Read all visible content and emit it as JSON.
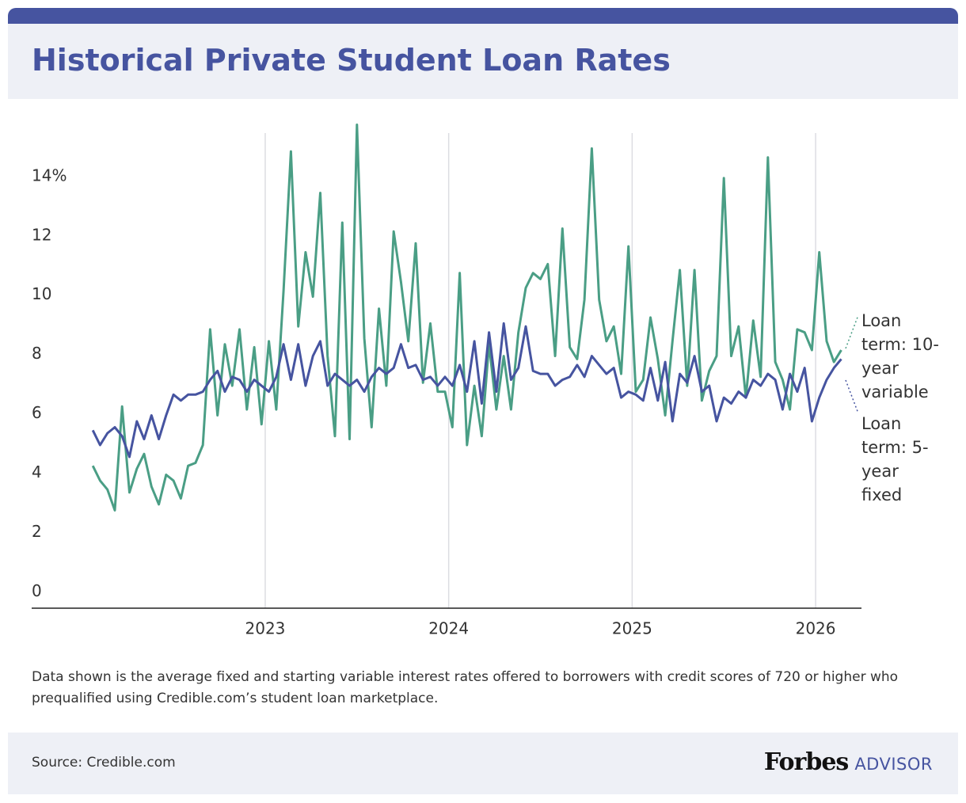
{
  "chart_data": {
    "type": "line",
    "title": "Historical Private Student Loan Rates",
    "x": [
      2022.06,
      2022.1,
      2022.14,
      2022.18,
      2022.22,
      2022.26,
      2022.3,
      2022.34,
      2022.38,
      2022.42,
      2022.46,
      2022.5,
      2022.54,
      2022.58,
      2022.62,
      2022.66,
      2022.7,
      2022.74,
      2022.78,
      2022.82,
      2022.86,
      2022.9,
      2022.94,
      2022.98,
      2023.02,
      2023.06,
      2023.1,
      2023.14,
      2023.18,
      2023.22,
      2023.26,
      2023.3,
      2023.34,
      2023.38,
      2023.42,
      2023.46,
      2023.5,
      2023.54,
      2023.58,
      2023.62,
      2023.66,
      2023.7,
      2023.74,
      2023.78,
      2023.82,
      2023.86,
      2023.9,
      2023.94,
      2023.98,
      2024.02,
      2024.06,
      2024.1,
      2024.14,
      2024.18,
      2024.22,
      2024.26,
      2024.3,
      2024.34,
      2024.38,
      2024.42,
      2024.46,
      2024.5,
      2024.54,
      2024.58,
      2024.62,
      2024.66,
      2024.7,
      2024.74,
      2024.78,
      2024.82,
      2024.86,
      2024.9,
      2024.94,
      2024.98,
      2025.02,
      2025.06,
      2025.1,
      2025.14,
      2025.18,
      2025.22,
      2025.26,
      2025.3,
      2025.34,
      2025.38,
      2025.42,
      2025.46,
      2025.5,
      2025.54,
      2025.58,
      2025.62,
      2025.66,
      2025.7,
      2025.74,
      2025.78,
      2025.82,
      2025.86,
      2025.9,
      2025.94,
      2025.98,
      2026.02,
      2026.06,
      2026.1,
      2026.14
    ],
    "series": [
      {
        "name": "Loan term: 10-year variable",
        "color": "#4a9e85",
        "values": [
          4.3,
          3.8,
          3.5,
          2.8,
          6.3,
          3.4,
          4.2,
          4.7,
          3.6,
          3.0,
          4.0,
          3.8,
          3.2,
          4.3,
          4.4,
          5.0,
          8.9,
          6.0,
          8.4,
          7.0,
          8.9,
          6.2,
          8.3,
          5.7,
          8.5,
          6.2,
          10.2,
          14.9,
          9.0,
          11.5,
          10.0,
          13.5,
          8.0,
          5.3,
          12.5,
          5.2,
          15.8,
          8.6,
          5.6,
          9.6,
          7.0,
          12.2,
          10.5,
          8.5,
          11.8,
          7.1,
          9.1,
          6.8,
          6.8,
          5.6,
          10.8,
          5.0,
          7.0,
          5.3,
          8.4,
          6.2,
          8.0,
          6.2,
          8.8,
          10.3,
          10.8,
          10.6,
          11.1,
          8.0,
          12.3,
          8.3,
          7.9,
          9.9,
          15.0,
          9.9,
          8.5,
          9.0,
          7.4,
          11.7,
          6.8,
          7.2,
          9.3,
          7.9,
          6.0,
          8.5,
          10.9,
          7.0,
          10.9,
          6.5,
          7.5,
          8.0,
          14.0,
          8.0,
          9.0,
          6.6,
          9.2,
          7.3,
          14.7,
          7.8,
          7.2,
          6.2,
          8.9,
          8.8,
          8.2,
          11.5,
          8.5,
          7.8,
          8.2
        ]
      },
      {
        "name": "Loan term: 5-year fixed",
        "color": "#4654a0",
        "values": [
          5.5,
          5.0,
          5.4,
          5.6,
          5.3,
          4.6,
          5.8,
          5.2,
          6.0,
          5.2,
          6.0,
          6.7,
          6.5,
          6.7,
          6.7,
          6.8,
          7.2,
          7.5,
          6.8,
          7.3,
          7.2,
          6.8,
          7.2,
          7.0,
          6.8,
          7.3,
          8.4,
          7.2,
          8.4,
          7.0,
          8.0,
          8.5,
          7.0,
          7.4,
          7.2,
          7.0,
          7.2,
          6.8,
          7.3,
          7.6,
          7.4,
          7.6,
          8.4,
          7.6,
          7.7,
          7.2,
          7.3,
          7.0,
          7.3,
          7.0,
          7.7,
          6.8,
          8.5,
          6.4,
          8.8,
          6.8,
          9.1,
          7.2,
          7.6,
          9.0,
          7.5,
          7.4,
          7.4,
          7.0,
          7.2,
          7.3,
          7.7,
          7.3,
          8.0,
          7.7,
          7.4,
          7.6,
          6.6,
          6.8,
          6.7,
          6.5,
          7.6,
          6.5,
          7.8,
          5.8,
          7.4,
          7.1,
          8.0,
          6.8,
          7.0,
          5.8,
          6.6,
          6.4,
          6.8,
          6.6,
          7.2,
          7.0,
          7.4,
          7.2,
          6.2,
          7.4,
          6.8,
          7.6,
          5.8,
          6.6,
          7.2,
          7.6,
          7.9
        ]
      }
    ],
    "xlim": [
      2021.727,
      2026.25
    ],
    "xticks": [
      2023,
      2024,
      2025,
      2026
    ],
    "ylim": [
      -0.5,
      16
    ],
    "yticks": [
      0,
      2,
      4,
      6,
      8,
      10,
      12,
      {
        "value": 14,
        "label": "14%"
      }
    ],
    "grid": true,
    "note": "Data shown is the average fixed and starting variable interest rates offered to borrowers with credit scores of 720 or higher who prequalified using Credible.com’s student loan marketplace.",
    "source": "Source: Credible.com",
    "brand": "Forbes",
    "brand_suffix": "ADVISOR"
  }
}
